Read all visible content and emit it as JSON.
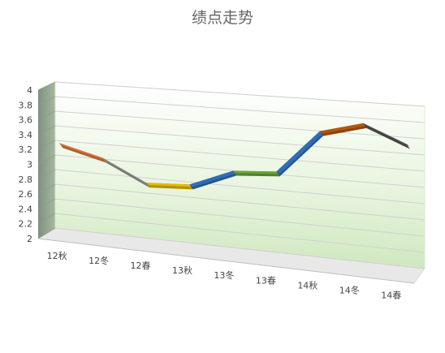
{
  "chart_data": {
    "type": "line",
    "title": "绩点走势",
    "xlabel": "",
    "ylabel": "",
    "categories": [
      "12秋",
      "12冬",
      "12春",
      "13秋",
      "13冬",
      "13春",
      "14秋",
      "14冬",
      "14春"
    ],
    "values": [
      3.15,
      3.0,
      2.72,
      2.75,
      2.98,
      3.02,
      3.58,
      3.72,
      3.5
    ],
    "ylim": [
      2,
      4
    ],
    "yticks": [
      "2",
      "2.2",
      "2.4",
      "2.6",
      "2.8",
      "3",
      "3.2",
      "3.4",
      "3.6",
      "3.8",
      "4"
    ],
    "grid": true,
    "legend": "none",
    "segment_colors": [
      "#e07a3a",
      "#9a9a9a",
      "#e6b800",
      "#2f6db5",
      "#6aa33a",
      "#2f6db5",
      "#b2560f",
      "#555555"
    ],
    "wall_color": "#d4ecc4",
    "floor_color": "#d9d9d9"
  }
}
